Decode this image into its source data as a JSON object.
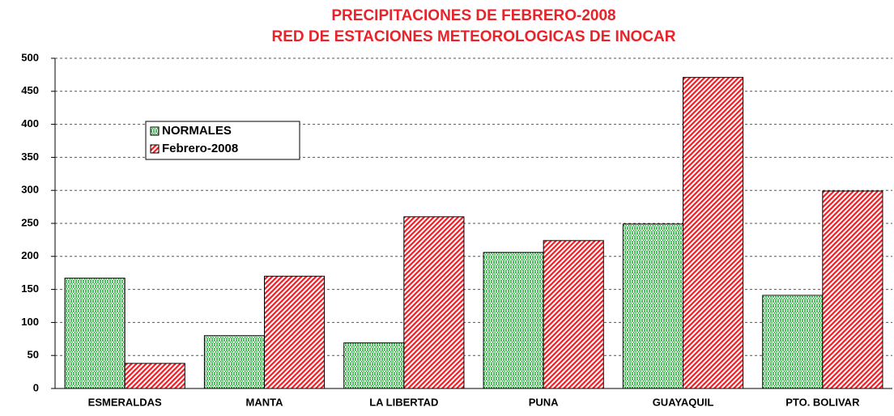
{
  "chart_data": {
    "type": "bar",
    "title": "PRECIPITACIONES DE FEBRERO-2008",
    "subtitle": "RED DE ESTACIONES METEOROLOGICAS DE INOCAR",
    "categories": [
      "ESMERALDAS",
      "MANTA",
      "LA LIBERTAD",
      "PUNA",
      "GUAYAQUIL",
      "PTO. BOLIVAR"
    ],
    "series": [
      {
        "name": "NORMALES",
        "color": "#2e9e3e",
        "values": [
          167,
          80,
          69,
          206,
          249,
          141
        ]
      },
      {
        "name": "Febrero-2008",
        "color": "#e8242a",
        "values": [
          38,
          170,
          260,
          224,
          471,
          299
        ]
      }
    ],
    "ylim": [
      0,
      500
    ],
    "yticks": [
      0,
      50,
      100,
      150,
      200,
      250,
      300,
      350,
      400,
      450,
      500
    ],
    "grid": true,
    "legend": "upper left"
  }
}
